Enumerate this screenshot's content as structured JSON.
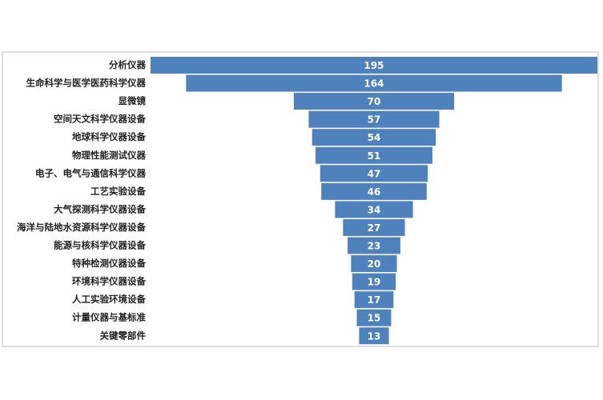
{
  "chart_data": {
    "type": "funnel",
    "categories": [
      "分析仪器",
      "生命科学与医学医药科学仪器",
      "显微镜",
      "空间天文科学仪器设备",
      "地球科学仪器设备",
      "物理性能测试仪器",
      "电子、电气与通信科学仪器",
      "工艺实验设备",
      "大气探测科学仪器设备",
      "海洋与陆地水资源科学仪器设备",
      "能源与核科学仪器设备",
      "特种检测仪器设备",
      "环境科学仪器设备",
      "人工实验环境设备",
      "计量仪器与基标准",
      "关键零部件"
    ],
    "values": [
      195,
      164,
      70,
      57,
      54,
      51,
      47,
      46,
      34,
      27,
      23,
      20,
      19,
      17,
      15,
      13
    ],
    "color": "#4f81bd"
  }
}
